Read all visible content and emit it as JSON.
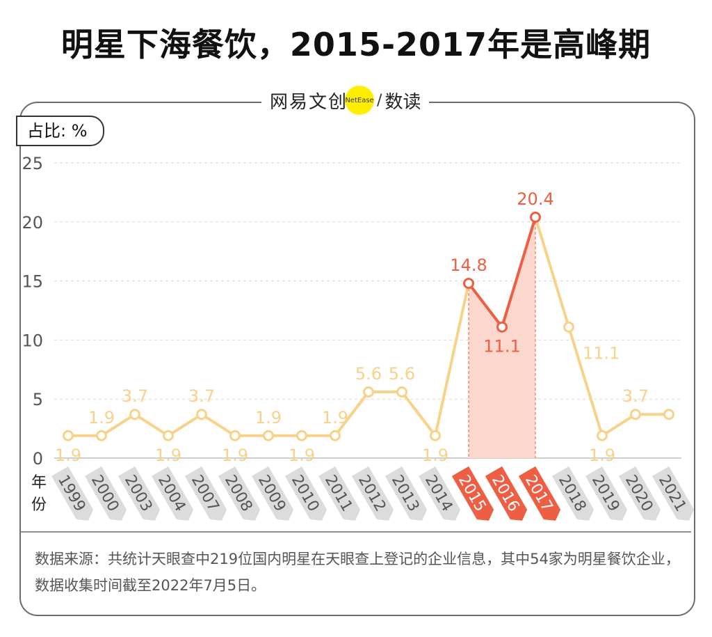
{
  "title": "明星下海餐饮，2015-2017年是高峰期",
  "brand": {
    "name1": "网易文创",
    "badge": "NetEase",
    "name2": "数读"
  },
  "unit_label": "占比: %",
  "x_axis_label": "年份",
  "source_note": "数据来源：共统计天眼查中219位国内明星在天眼查上登记的企业信息，其中54家为明星餐饮企业，数据收集时间截至2022年7月5日。",
  "colors": {
    "line": "#f7d288",
    "highlight": "#ee5e43",
    "area": "#fbd7cd",
    "tab_gray": "#dcdcdc",
    "tab_red": "#ee5e43"
  },
  "chart_data": {
    "type": "line",
    "title": "明星下海餐饮，2015-2017年是高峰期",
    "ylabel": "占比: %",
    "xlabel": "年份",
    "ylim": [
      0,
      25
    ],
    "yticks": [
      0,
      5,
      10,
      15,
      20,
      25
    ],
    "grid": true,
    "categories": [
      "1999",
      "2000",
      "2003",
      "2004",
      "2007",
      "2008",
      "2009",
      "2010",
      "2011",
      "2012",
      "2013",
      "2014",
      "2015",
      "2016",
      "2017",
      "2018",
      "2019",
      "2020",
      "2021"
    ],
    "values": [
      1.9,
      1.9,
      3.7,
      1.9,
      3.7,
      1.9,
      1.9,
      1.9,
      1.9,
      5.6,
      5.6,
      1.9,
      14.8,
      11.1,
      20.4,
      11.1,
      1.9,
      3.7,
      3.7
    ],
    "highlight_categories": [
      "2015",
      "2016",
      "2017"
    ],
    "data_labels": [
      {
        "category": "1999",
        "text": "1.9",
        "pos": "below"
      },
      {
        "category": "2000",
        "text": "1.9",
        "pos": "above"
      },
      {
        "category": "2003",
        "text": "3.7",
        "pos": "above"
      },
      {
        "category": "2004",
        "text": "1.9",
        "pos": "below"
      },
      {
        "category": "2007",
        "text": "3.7",
        "pos": "above"
      },
      {
        "category": "2008",
        "text": "1.9",
        "pos": "below"
      },
      {
        "category": "2009",
        "text": "1.9",
        "pos": "above"
      },
      {
        "category": "2010",
        "text": "1.9",
        "pos": "below"
      },
      {
        "category": "2011",
        "text": "1.9",
        "pos": "above"
      },
      {
        "category": "2012",
        "text": "5.6",
        "pos": "above"
      },
      {
        "category": "2013",
        "text": "5.6",
        "pos": "above"
      },
      {
        "category": "2014",
        "text": "1.9",
        "pos": "below"
      },
      {
        "category": "2015",
        "text": "14.8",
        "pos": "above"
      },
      {
        "category": "2016",
        "text": "11.1",
        "pos": "below"
      },
      {
        "category": "2017",
        "text": "20.4",
        "pos": "above"
      },
      {
        "category": "2018",
        "text": "11.1",
        "pos": "right"
      },
      {
        "category": "2019",
        "text": "1.9",
        "pos": "below"
      },
      {
        "category": "2020",
        "text": "3.7",
        "pos": "above"
      }
    ]
  }
}
